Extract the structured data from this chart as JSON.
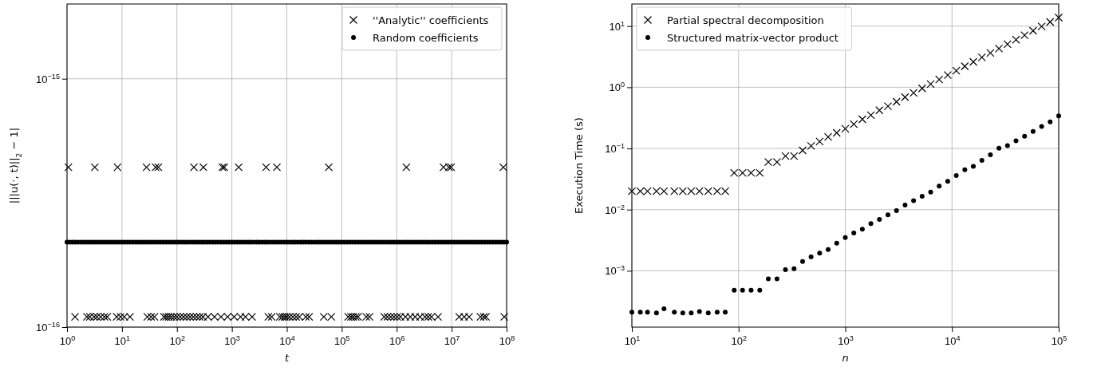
{
  "chart_data": [
    {
      "type": "scatter",
      "xlabel": "t",
      "ylabel": "|||u(·, t)||$_{2}$ − 1|",
      "log": "xy",
      "grid": true,
      "legend": "top right",
      "xlim": [
        1,
        100000000.0
      ],
      "ylim": [
        1e-16,
        2e-15
      ],
      "xticks": [
        {
          "value": 1,
          "label": "10$^{0}$"
        },
        {
          "value": 10,
          "label": "10$^{1}$"
        },
        {
          "value": 100,
          "label": "10$^{2}$"
        },
        {
          "value": 1000,
          "label": "10$^{3}$"
        },
        {
          "value": 10000,
          "label": "10$^{4}$"
        },
        {
          "value": 100000,
          "label": "10$^{5}$"
        },
        {
          "value": 1000000,
          "label": "10$^{6}$"
        },
        {
          "value": 10000000,
          "label": "10$^{7}$"
        },
        {
          "value": 100000000,
          "label": "10$^{8}$"
        }
      ],
      "yticks": [
        {
          "value": 1e-16,
          "label": "10$^{−16}$"
        },
        {
          "value": 1e-15,
          "label": "10$^{−15}$"
        }
      ],
      "series": [
        {
          "name": "''Analytic'' coefficients",
          "color": "#000000",
          "marker": "cross",
          "x": [
            1.06,
            3.2,
            8.3,
            28,
            41,
            46,
            204,
            303,
            672,
            727,
            1330,
            4200,
            6600,
            58000,
            1500000,
            7100000,
            8900000,
            9800000,
            87000000,
            1.4,
            2.3,
            2.6,
            3.1,
            3.5,
            4.1,
            4.8,
            5.4,
            8.0,
            9.4,
            11,
            14,
            29,
            34,
            39,
            58,
            64,
            71,
            79,
            89,
            100,
            115,
            132,
            151,
            173,
            199,
            228,
            261,
            299,
            367,
            483,
            635,
            835,
            1100,
            1440,
            1770,
            2330,
            4610,
            5290,
            7450,
            8300,
            9140,
            10000,
            11200,
            12900,
            14800,
            16900,
            22200,
            25500,
            47100,
            64600,
            131000,
            147000,
            161000,
            180000,
            198000,
            279000,
            320000,
            592000,
            678000,
            778000,
            891000,
            1020000,
            1170000,
            1440000,
            1770000,
            2170000,
            2660000,
            3270000,
            3750000,
            4300000,
            5650000,
            13700000,
            16900000,
            20700000,
            33400000,
            38300000,
            42200000,
            90600000
          ],
          "values": [
            4.4e-16,
            4.4e-16,
            4.4e-16,
            4.4e-16,
            4.4e-16,
            4.4e-16,
            4.4e-16,
            4.4e-16,
            4.4e-16,
            4.4e-16,
            4.4e-16,
            4.4e-16,
            4.4e-16,
            4.4e-16,
            4.4e-16,
            4.4e-16,
            4.4e-16,
            4.4e-16,
            4.4e-16,
            1.1e-16,
            1.1e-16,
            1.1e-16,
            1.1e-16,
            1.1e-16,
            1.1e-16,
            1.1e-16,
            1.1e-16,
            1.1e-16,
            1.1e-16,
            1.1e-16,
            1.1e-16,
            1.1e-16,
            1.1e-16,
            1.1e-16,
            1.1e-16,
            1.1e-16,
            1.1e-16,
            1.1e-16,
            1.1e-16,
            1.1e-16,
            1.1e-16,
            1.1e-16,
            1.1e-16,
            1.1e-16,
            1.1e-16,
            1.1e-16,
            1.1e-16,
            1.1e-16,
            1.1e-16,
            1.1e-16,
            1.1e-16,
            1.1e-16,
            1.1e-16,
            1.1e-16,
            1.1e-16,
            1.1e-16,
            1.1e-16,
            1.1e-16,
            1.1e-16,
            1.1e-16,
            1.1e-16,
            1.1e-16,
            1.1e-16,
            1.1e-16,
            1.1e-16,
            1.1e-16,
            1.1e-16,
            1.1e-16,
            1.1e-16,
            1.1e-16,
            1.1e-16,
            1.1e-16,
            1.1e-16,
            1.1e-16,
            1.1e-16,
            1.1e-16,
            1.1e-16,
            1.1e-16,
            1.1e-16,
            1.1e-16,
            1.1e-16,
            1.1e-16,
            1.1e-16,
            1.1e-16,
            1.1e-16,
            1.1e-16,
            1.1e-16,
            1.1e-16,
            1.1e-16,
            1.1e-16,
            1.1e-16,
            1.1e-16,
            1.1e-16,
            1.1e-16,
            1.1e-16,
            1.1e-16,
            1.1e-16,
            1.1e-16
          ]
        },
        {
          "name": "Random coefficients",
          "color": "#000000",
          "marker": "circle",
          "x": [
            1,
            1.12,
            1.26,
            1.41,
            1.58,
            1.78,
            2,
            2.24,
            2.51,
            2.82,
            3.16,
            3.55,
            3.98,
            4.47,
            5.01,
            5.62,
            6.31,
            7.08,
            7.94,
            8.91,
            10,
            11.2,
            12.6,
            14.1,
            15.8,
            17.8,
            20,
            22.4,
            25.1,
            28.2,
            31.6,
            35.5,
            39.8,
            44.7,
            50.1,
            56.2,
            63.1,
            70.8,
            79.4,
            89.1,
            100,
            112,
            126,
            141,
            158,
            178,
            200,
            224,
            251,
            282,
            316,
            355,
            398,
            447,
            501,
            562,
            631,
            708,
            794,
            891,
            1000,
            1120,
            1260,
            1410,
            1580,
            1780,
            2000,
            2240,
            2510,
            2820,
            3160,
            3550,
            3980,
            4470,
            5010,
            5620,
            6310,
            7080,
            7940,
            8910,
            10000.0,
            11200.0,
            12600.0,
            14100.0,
            15800.0,
            17800.0,
            20000.0,
            22400.0,
            25100.0,
            28200.0,
            31600.0,
            35500.0,
            39800.0,
            44700.0,
            50100.0,
            56200.0,
            63100.0,
            70800.0,
            79400.0,
            89100.0,
            100000.0,
            112000.0,
            126000.0,
            141000.0,
            158000.0,
            178000.0,
            200000.0,
            224000.0,
            251000.0,
            282000.0,
            316000.0,
            355000.0,
            398000.0,
            447000.0,
            501000.0,
            562000.0,
            631000.0,
            708000.0,
            794000.0,
            891000.0,
            1000000.0,
            1120000.0,
            1260000.0,
            1410000.0,
            1580000.0,
            1780000.0,
            2000000.0,
            2240000.0,
            2510000.0,
            2820000.0,
            3160000.0,
            3550000.0,
            3980000.0,
            4470000.0,
            5010000.0,
            5620000.0,
            6310000.0,
            7080000.0,
            7940000.0,
            8910000.0,
            10000000.0,
            11200000.0,
            12600000.0,
            14100000.0,
            15800000.0,
            17800000.0,
            20000000.0,
            22400000.0,
            25100000.0,
            28200000.0,
            31600000.0,
            35500000.0,
            39800000.0,
            44700000.0,
            50100000.0,
            56200000.0,
            63100000.0,
            70800000.0,
            79400000.0,
            89100000.0,
            100000000.0
          ],
          "values": [
            2.2e-16,
            2.2e-16,
            2.2e-16,
            2.2e-16,
            2.2e-16,
            2.2e-16,
            2.2e-16,
            2.2e-16,
            2.2e-16,
            2.2e-16,
            2.2e-16,
            2.2e-16,
            2.2e-16,
            2.2e-16,
            2.2e-16,
            2.2e-16,
            2.2e-16,
            2.2e-16,
            2.2e-16,
            2.2e-16,
            2.2e-16,
            2.2e-16,
            2.2e-16,
            2.2e-16,
            2.2e-16,
            2.2e-16,
            2.2e-16,
            2.2e-16,
            2.2e-16,
            2.2e-16,
            2.2e-16,
            2.2e-16,
            2.2e-16,
            2.2e-16,
            2.2e-16,
            2.2e-16,
            2.2e-16,
            2.2e-16,
            2.2e-16,
            2.2e-16,
            2.2e-16,
            2.2e-16,
            2.2e-16,
            2.2e-16,
            2.2e-16,
            2.2e-16,
            2.2e-16,
            2.2e-16,
            2.2e-16,
            2.2e-16,
            2.2e-16,
            2.2e-16,
            2.2e-16,
            2.2e-16,
            2.2e-16,
            2.2e-16,
            2.2e-16,
            2.2e-16,
            2.2e-16,
            2.2e-16,
            2.2e-16,
            2.2e-16,
            2.2e-16,
            2.2e-16,
            2.2e-16,
            2.2e-16,
            2.2e-16,
            2.2e-16,
            2.2e-16,
            2.2e-16,
            2.2e-16,
            2.2e-16,
            2.2e-16,
            2.2e-16,
            2.2e-16,
            2.2e-16,
            2.2e-16,
            2.2e-16,
            2.2e-16,
            2.2e-16,
            2.2e-16,
            2.2e-16,
            2.2e-16,
            2.2e-16,
            2.2e-16,
            2.2e-16,
            2.2e-16,
            2.2e-16,
            2.2e-16,
            2.2e-16,
            2.2e-16,
            2.2e-16,
            2.2e-16,
            2.2e-16,
            2.2e-16,
            2.2e-16,
            2.2e-16,
            2.2e-16,
            2.2e-16,
            2.2e-16,
            2.2e-16,
            2.2e-16,
            2.2e-16,
            2.2e-16,
            2.2e-16,
            2.2e-16,
            2.2e-16,
            2.2e-16,
            2.2e-16,
            2.2e-16,
            2.2e-16,
            2.2e-16,
            2.2e-16,
            2.2e-16,
            2.2e-16,
            2.2e-16,
            2.2e-16,
            2.2e-16,
            2.2e-16,
            2.2e-16,
            2.2e-16,
            2.2e-16,
            2.2e-16,
            2.2e-16,
            2.2e-16,
            2.2e-16,
            2.2e-16,
            2.2e-16,
            2.2e-16,
            2.2e-16,
            2.2e-16,
            2.2e-16,
            2.2e-16,
            2.2e-16,
            2.2e-16,
            2.2e-16,
            2.2e-16,
            2.2e-16,
            2.2e-16,
            2.2e-16,
            2.2e-16,
            2.2e-16,
            2.2e-16,
            2.2e-16,
            2.2e-16,
            2.2e-16,
            2.2e-16,
            2.2e-16,
            2.2e-16,
            2.2e-16,
            2.2e-16,
            2.2e-16,
            2.2e-16,
            2.2e-16,
            2.2e-16,
            2.2e-16,
            2.2e-16,
            2.2e-16,
            2.2e-16,
            2.2e-16,
            2.2e-16
          ]
        }
      ]
    },
    {
      "type": "scatter",
      "xlabel": "n",
      "ylabel": "Execution Time (s)",
      "log": "xy",
      "grid": true,
      "legend": "top left",
      "xlim": [
        10,
        100000
      ],
      "ylim": [
        0.00012,
        23
      ],
      "xticks": [
        {
          "value": 10,
          "label": "10$^{1}$"
        },
        {
          "value": 100,
          "label": "10$^{2}$"
        },
        {
          "value": 1000,
          "label": "10$^{3}$"
        },
        {
          "value": 10000,
          "label": "10$^{4}$"
        },
        {
          "value": 100000,
          "label": "10$^{5}$"
        }
      ],
      "yticks": [
        {
          "value": 0.001,
          "label": "10$^{−3}$"
        },
        {
          "value": 0.01,
          "label": "10$^{−2}$"
        },
        {
          "value": 0.1,
          "label": "10$^{−1}$"
        },
        {
          "value": 1,
          "label": "10$^{0}$"
        },
        {
          "value": 10,
          "label": "10$^{1}$"
        }
      ],
      "x": [
        10,
        12,
        14,
        17,
        20,
        25,
        30,
        36,
        43,
        52,
        63,
        75,
        91,
        109,
        131,
        158,
        190,
        229,
        275,
        331,
        398,
        478,
        575,
        691,
        831,
        1000,
        1202,
        1445,
        1737,
        2089,
        2511,
        3019,
        3630,
        4365,
        5248,
        6309,
        7585,
        9120,
        10964,
        13182,
        15848,
        19054,
        22908,
        27542,
        33113,
        39810,
        47863,
        57543,
        69183,
        83176,
        100000
      ],
      "series": [
        {
          "name": "Partial spectral decomposition",
          "color": "#000000",
          "marker": "cross",
          "values": [
            0.02,
            0.02,
            0.02,
            0.02,
            0.02,
            0.02,
            0.02,
            0.02,
            0.02,
            0.02,
            0.02,
            0.02,
            0.04,
            0.04,
            0.04,
            0.04,
            0.06,
            0.06,
            0.075,
            0.075,
            0.093,
            0.11,
            0.13,
            0.154,
            0.18,
            0.21,
            0.25,
            0.3,
            0.35,
            0.42,
            0.49,
            0.58,
            0.69,
            0.81,
            0.96,
            1.13,
            1.34,
            1.58,
            1.87,
            2.21,
            2.61,
            3.08,
            3.64,
            4.3,
            5.07,
            6.0,
            7.1,
            8.4,
            9.9,
            11.7,
            13.8
          ]
        },
        {
          "name": "Structured matrix-vector product",
          "color": "#000000",
          "marker": "circle",
          "values": [
            0.00021,
            0.00021,
            0.00021,
            0.000205,
            0.00024,
            0.00021,
            0.000205,
            0.000205,
            0.000215,
            0.000205,
            0.00021,
            0.00021,
            0.00048,
            0.00048,
            0.00048,
            0.00048,
            0.00074,
            0.00074,
            0.00104,
            0.00108,
            0.00142,
            0.00169,
            0.00194,
            0.00223,
            0.00283,
            0.0035,
            0.00415,
            0.0048,
            0.0059,
            0.0069,
            0.0082,
            0.0096,
            0.0119,
            0.014,
            0.0165,
            0.0194,
            0.0243,
            0.029,
            0.036,
            0.045,
            0.051,
            0.064,
            0.079,
            0.101,
            0.111,
            0.133,
            0.159,
            0.19,
            0.229,
            0.273,
            0.342
          ]
        }
      ]
    }
  ]
}
